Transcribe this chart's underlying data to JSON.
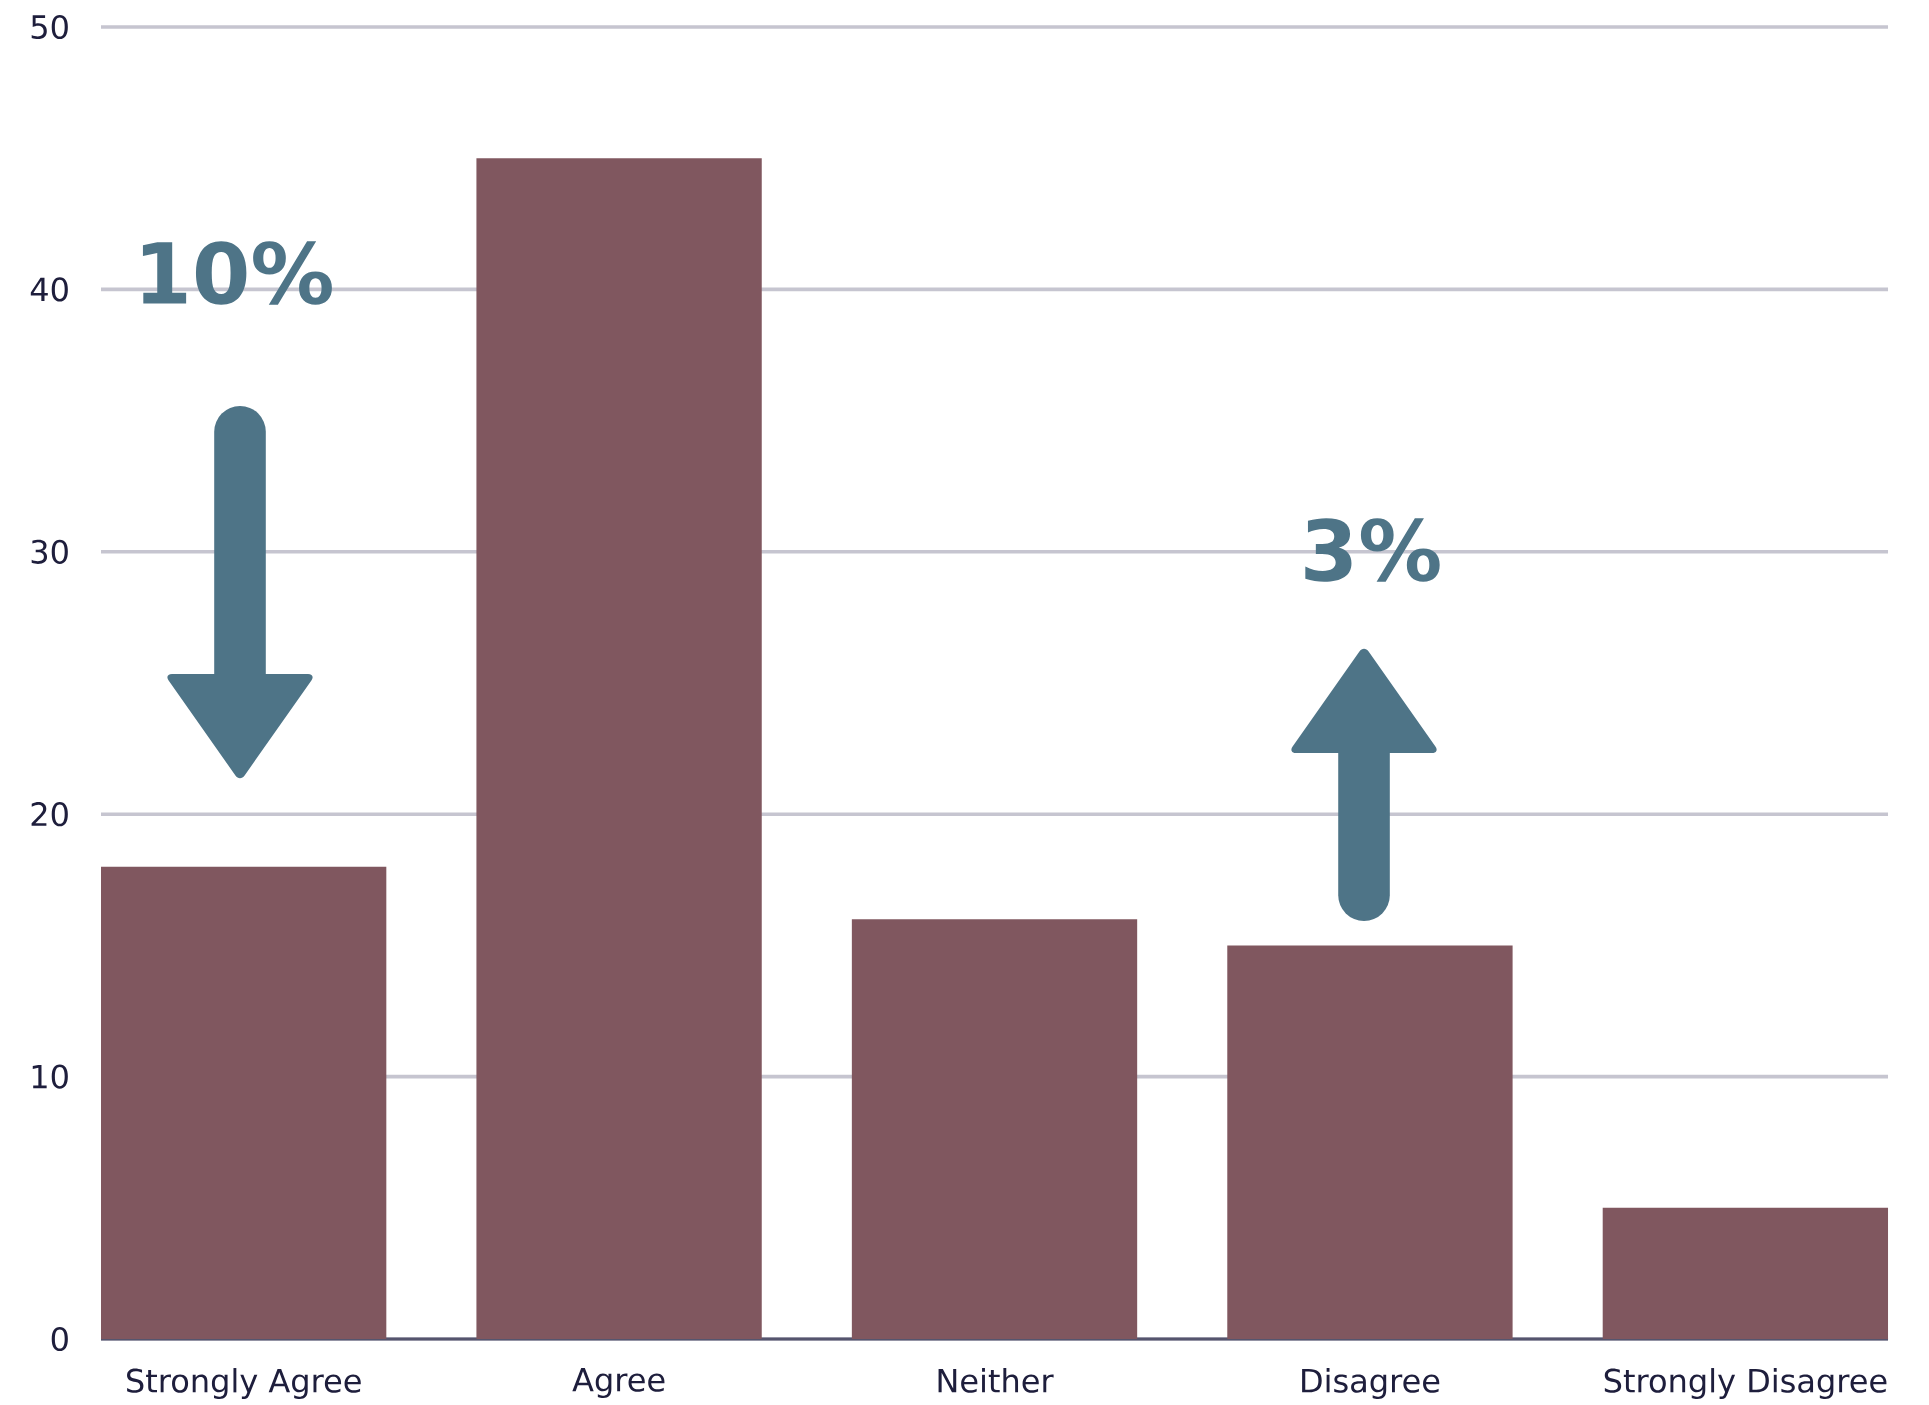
{
  "chart_data": {
    "type": "bar",
    "categories": [
      "Strongly Agree",
      "Agree",
      "Neither",
      "Disagree",
      "Strongly Disagree"
    ],
    "values": [
      18,
      45,
      16,
      15,
      5
    ],
    "color": "#80575f",
    "ylim": [
      0,
      50
    ],
    "yticks": [
      0,
      10,
      20,
      30,
      40,
      50
    ],
    "grid": "y",
    "annotations": [
      "10%",
      "3%"
    ]
  }
}
